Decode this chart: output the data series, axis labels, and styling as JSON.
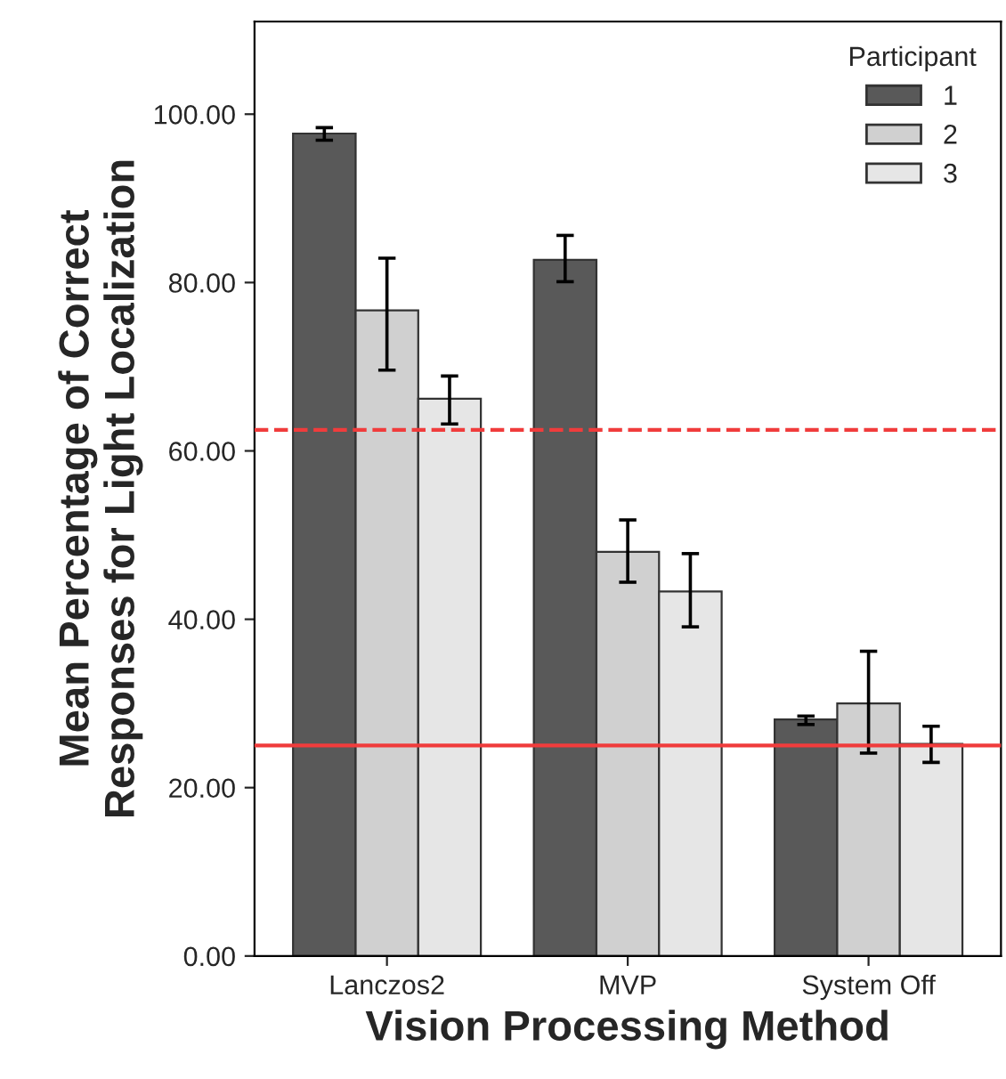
{
  "chart_data": {
    "type": "bar",
    "xlabel": "Vision Processing Method",
    "ylabel": "Mean Percentage of Correct\nResponses for Light Localization",
    "categories": [
      "Lanczos2",
      "MVP",
      "System Off"
    ],
    "series": [
      {
        "name": "1",
        "color": "#595959",
        "values": [
          97.7,
          82.7,
          28.1
        ],
        "errors": [
          [
            96.9,
            98.4
          ],
          [
            80.1,
            85.6
          ],
          [
            27.5,
            28.5
          ]
        ]
      },
      {
        "name": "2",
        "color": "#d0d0d0",
        "values": [
          76.7,
          48.0,
          30.0
        ],
        "errors": [
          [
            69.6,
            82.9
          ],
          [
            44.4,
            51.8
          ],
          [
            24.1,
            36.2
          ]
        ]
      },
      {
        "name": "3",
        "color": "#e6e6e6",
        "values": [
          66.2,
          43.3,
          25.2
        ],
        "errors": [
          [
            63.2,
            68.9
          ],
          [
            39.1,
            47.8
          ],
          [
            23.0,
            27.3
          ]
        ]
      }
    ],
    "ylim": [
      0,
      111
    ],
    "yticks": [
      {
        "value": 0,
        "label": "0.00"
      },
      {
        "value": 20,
        "label": "20.00"
      },
      {
        "value": 40,
        "label": "40.00"
      },
      {
        "value": 60,
        "label": "60.00"
      },
      {
        "value": 80,
        "label": "80.00"
      },
      {
        "value": 100,
        "label": "100.00"
      }
    ],
    "ref_lines": [
      {
        "axis": "y",
        "value": 62.5,
        "color": "#f03c3c",
        "line_style": "dashed"
      },
      {
        "axis": "y",
        "value": 25,
        "color": "#f03c3c",
        "line_style": "solid"
      }
    ],
    "legend": "top right",
    "legend_title": "Participant",
    "grid": false
  }
}
